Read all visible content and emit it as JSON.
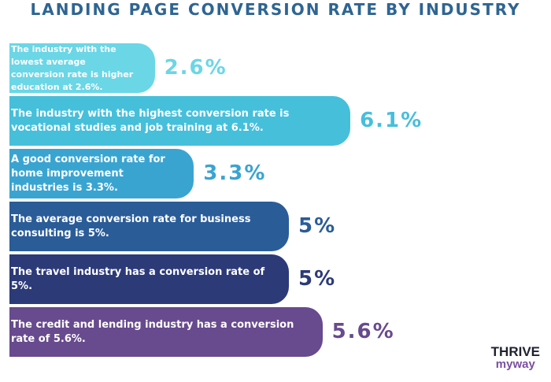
{
  "chart_data": {
    "type": "bar",
    "orientation": "horizontal",
    "title": "LANDING PAGE CONVERSION RATE BY INDUSTRY",
    "categories": [
      "The industry with the lowest average conversion rate is higher education at 2.6%.",
      "The industry with the highest conversion rate is vocational studies and job training at 6.1%.",
      "A good conversion rate for home improvement industries is 3.3%.",
      "The average conversion rate for business consulting is 5%.",
      "The travel industry has a conversion rate of 5%.",
      "The credit and lending industry has a conversion rate of 5.6%."
    ],
    "values": [
      2.6,
      6.1,
      3.3,
      5,
      5,
      5.6
    ],
    "value_labels": [
      "2.6%",
      "6.1%",
      "3.3%",
      "5%",
      "5%",
      "5.6%"
    ],
    "colors": [
      "#6bd6e6",
      "#46bfdb",
      "#3aa4d1",
      "#2a5c98",
      "#2c3a78",
      "#684a8e"
    ]
  },
  "logo": {
    "line1": "THRIVE",
    "line2": "myway"
  }
}
